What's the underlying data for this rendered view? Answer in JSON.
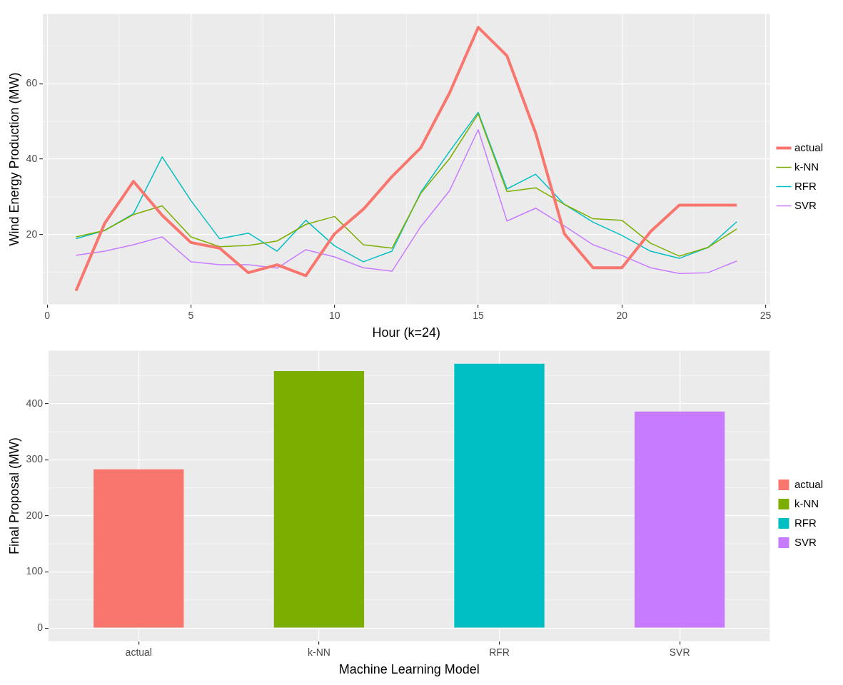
{
  "chart_data": [
    {
      "type": "line",
      "xlabel": "Hour (k=24)",
      "ylabel": "Wind Energy Production (MW)",
      "x": [
        1,
        2,
        3,
        4,
        5,
        6,
        7,
        8,
        9,
        10,
        11,
        12,
        13,
        14,
        15,
        16,
        17,
        18,
        19,
        20,
        21,
        22,
        23,
        24
      ],
      "series": [
        {
          "name": "actual",
          "color": "#f8766d",
          "values": [
            5.1,
            23,
            34.1,
            25.1,
            17.9,
            16.4,
            9.9,
            12,
            9.1,
            20.2,
            26.7,
            35.4,
            43,
            57.5,
            74.9,
            67.4,
            46.9,
            20.2,
            11.2,
            11.2,
            20.8,
            27.8,
            27.8,
            27.8
          ]
        },
        {
          "name": "k-NN",
          "color": "#7cae00",
          "values": [
            19.4,
            21.1,
            25.3,
            27.6,
            19.4,
            16.8,
            17.1,
            18.3,
            22.7,
            24.8,
            17.3,
            16.4,
            30.9,
            40.1,
            52,
            31.4,
            32.4,
            28,
            24.2,
            23.8,
            17.7,
            14.3,
            16.6,
            21.5
          ]
        },
        {
          "name": "RFR",
          "color": "#00bfc4",
          "values": [
            18.9,
            21.1,
            25.5,
            40.6,
            29,
            18.9,
            20.4,
            15.6,
            23.8,
            17,
            12.8,
            15.6,
            31.2,
            42,
            52.4,
            32.1,
            36,
            28,
            23.3,
            19.8,
            15.6,
            13.7,
            16.6,
            23.4
          ]
        },
        {
          "name": "SVR",
          "color": "#c77cff",
          "values": [
            14.5,
            15.6,
            17.3,
            19.4,
            12.8,
            12,
            12,
            11.1,
            16,
            14.1,
            11.2,
            10.3,
            22.1,
            31.6,
            47.8,
            23.6,
            27,
            22.3,
            17.3,
            14.5,
            11.2,
            9.7,
            9.9,
            13
          ]
        }
      ],
      "xlim": [
        -0.15,
        25.15
      ],
      "ylim": [
        1.5,
        78.5
      ],
      "xticks": [
        0,
        5,
        10,
        15,
        20,
        25
      ],
      "yticks": [
        20,
        40,
        60
      ],
      "grid": true,
      "legend": "right",
      "marker": "none"
    },
    {
      "type": "bar",
      "xlabel": "Machine Learning Model",
      "ylabel": "Final Proposal (MW)",
      "categories": [
        "actual",
        "k-NN",
        "RFR",
        "SVR"
      ],
      "series": [
        {
          "name": "actual",
          "color": "#f8766d",
          "values": [
            283,
            null,
            null,
            null
          ]
        },
        {
          "name": "k-NN",
          "color": "#7cae00",
          "values": [
            null,
            458,
            null,
            null
          ]
        },
        {
          "name": "RFR",
          "color": "#00bfc4",
          "values": [
            null,
            null,
            471,
            null
          ]
        },
        {
          "name": "SVR",
          "color": "#c77cff",
          "values": [
            null,
            null,
            null,
            386
          ]
        }
      ],
      "ylim": [
        -23.5,
        494.5
      ],
      "yticks": [
        0,
        100,
        200,
        300,
        400
      ],
      "grid": true,
      "legend": "right"
    }
  ]
}
